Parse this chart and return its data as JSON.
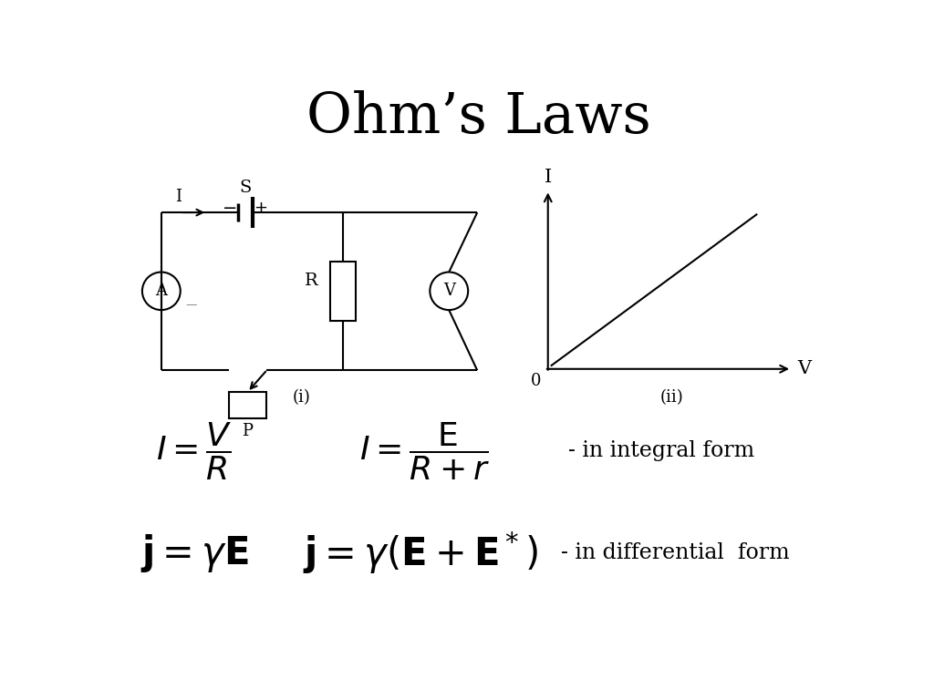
{
  "title": "Ohm’s Laws",
  "title_fontsize": 44,
  "bg_color": "#ffffff",
  "text_color": "#000000",
  "circuit_label": "(i)",
  "graph_label": "(ii)",
  "formula3_desc": "- in integral form",
  "formula6_desc": "- in differential  form"
}
